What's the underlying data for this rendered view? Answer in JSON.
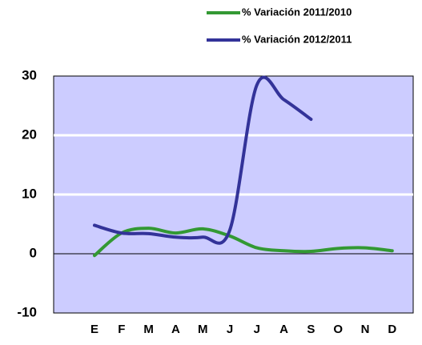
{
  "chart_data": {
    "type": "line",
    "categories": [
      "E",
      "F",
      "M",
      "A",
      "M",
      "J",
      "J",
      "A",
      "S",
      "O",
      "N",
      "D"
    ],
    "series": [
      {
        "name": "% Variación 2011/2010",
        "color": "#339933",
        "values": [
          -0.3,
          3.5,
          4.3,
          3.5,
          4.2,
          3.0,
          1.0,
          0.5,
          0.4,
          0.9,
          1.0,
          0.5
        ]
      },
      {
        "name": "% Variación 2012/2011",
        "color": "#333399",
        "values": [
          4.8,
          3.5,
          3.4,
          2.8,
          2.8,
          4.0,
          28.5,
          26.0,
          22.7,
          null,
          null,
          null
        ]
      }
    ],
    "ylim": [
      -10,
      30
    ],
    "yticks": [
      -10,
      0,
      10,
      20,
      30
    ],
    "grid": true,
    "legend": "top-right"
  }
}
